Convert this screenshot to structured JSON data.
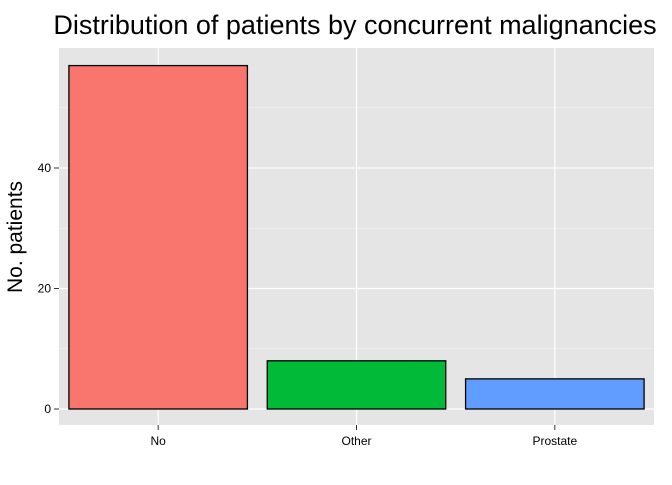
{
  "chart_data": {
    "type": "bar",
    "title": "Distribution of patients by concurrent malignancies",
    "xlabel": "",
    "ylabel": "No. patients",
    "categories": [
      "No",
      "Other",
      "Prostate"
    ],
    "values": [
      57,
      8,
      5
    ],
    "colors": [
      "#F8766D",
      "#00BA38",
      "#619CFF"
    ],
    "bar_outline_color": "#000000",
    "panel_background": "#E5E5E5",
    "grid": true,
    "grid_color": "#FFFFFF",
    "ylim": [
      0,
      60
    ],
    "yticks": [
      0,
      20,
      40
    ],
    "legend": "none"
  }
}
